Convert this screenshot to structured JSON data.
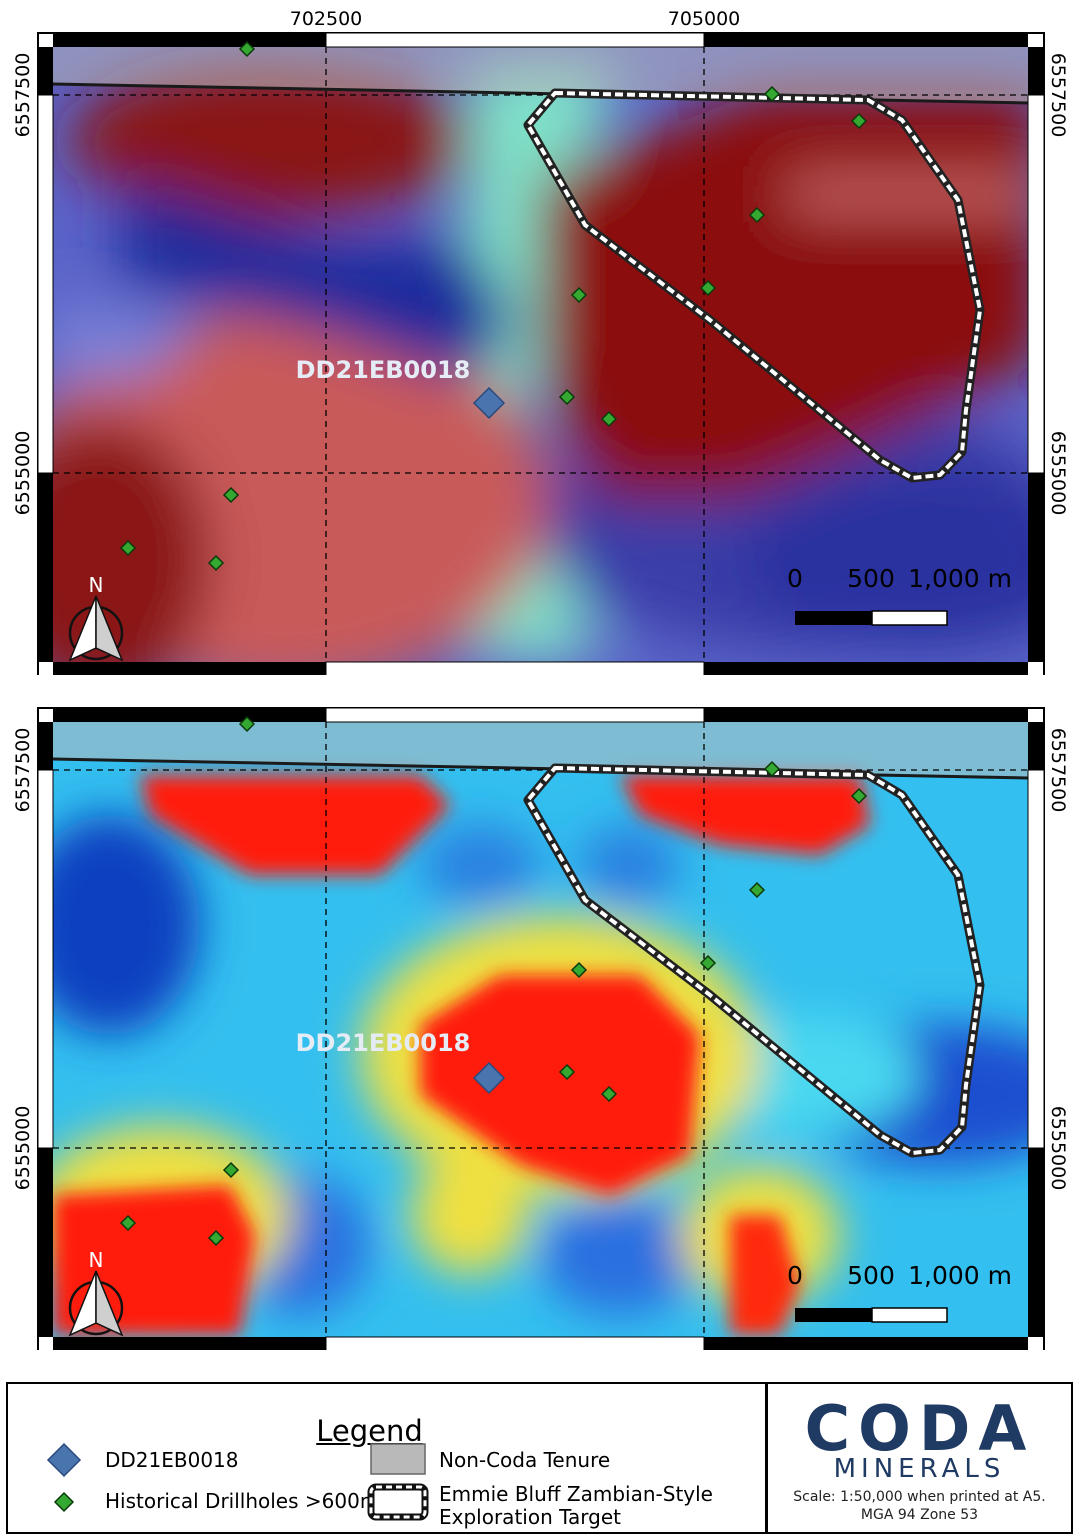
{
  "grid_labels": {
    "easting": [
      "702500",
      "705000"
    ],
    "northing": [
      "6557500",
      "6555000"
    ]
  },
  "map_panels": [
    {
      "id": "top",
      "drillhole_label": "DD21EB0018",
      "scale_bar": {
        "labels": [
          "0",
          "500",
          "1,000 m"
        ]
      },
      "north_arrow": "N"
    },
    {
      "id": "bottom",
      "drillhole_label": "DD21EB0018",
      "scale_bar": {
        "labels": [
          "0",
          "500",
          "1,000 m"
        ]
      },
      "north_arrow": "N"
    }
  ],
  "legend": {
    "title": "Legend",
    "items": [
      {
        "label": "DD21EB0018",
        "icon": "blue-diamond-icon",
        "color": "#4a74ad"
      },
      {
        "label": "Historical Drillholes >600m",
        "icon": "green-diamond-icon",
        "color": "#35a832"
      },
      {
        "label": "Non-Coda Tenure",
        "icon": "grey-box-icon",
        "color": "#b9b9b9"
      },
      {
        "label_line1": "Emmie Bluff Zambian-Style",
        "label_line2": "Exploration Target",
        "icon": "dashed-polygon-icon"
      }
    ]
  },
  "logo": {
    "word": "CODA",
    "sub": "MINERALS",
    "scale_note_1": "Scale: 1:50,000 when printed at A5.",
    "scale_note_2": "MGA 94 Zone 53",
    "color": "#1f3a63"
  }
}
